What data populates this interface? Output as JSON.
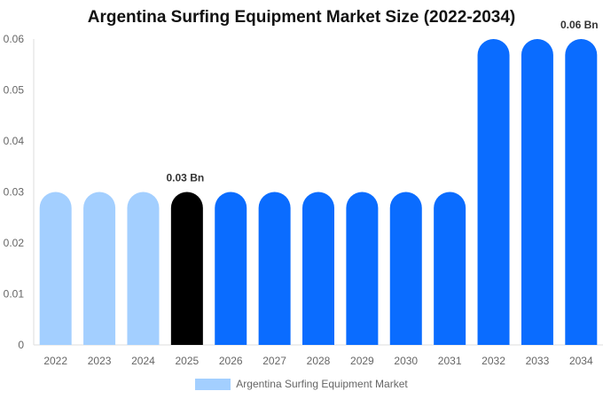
{
  "chart_data": {
    "type": "bar",
    "title": "Argentina Surfing Equipment Market Size (2022-2034)",
    "xlabel": "",
    "ylabel": "",
    "categories": [
      "2022",
      "2023",
      "2024",
      "2025",
      "2026",
      "2027",
      "2028",
      "2029",
      "2030",
      "2031",
      "2032",
      "2033",
      "2034"
    ],
    "series": [
      {
        "name": "Argentina Surfing Equipment Market",
        "values": [
          0.03,
          0.03,
          0.03,
          0.03,
          0.03,
          0.03,
          0.03,
          0.03,
          0.03,
          0.03,
          0.06,
          0.06,
          0.06
        ]
      }
    ],
    "ylim": [
      0,
      0.06
    ],
    "yticks": [
      "0",
      "0.01",
      "0.02",
      "0.03",
      "0.04",
      "0.05",
      "0.06"
    ],
    "bar_colors": [
      "#a3cfff",
      "#a3cfff",
      "#a3cfff",
      "#000000",
      "#0a6cff",
      "#0a6cff",
      "#0a6cff",
      "#0a6cff",
      "#0a6cff",
      "#0a6cff",
      "#0a6cff",
      "#0a6cff",
      "#0a6cff"
    ],
    "data_labels": [
      {
        "category": "2025",
        "text": "0.03 Bn"
      },
      {
        "category": "2034",
        "text": "0.06 Bn"
      }
    ],
    "legend": {
      "label": "Argentina Surfing Equipment Market",
      "color": "#a3cfff",
      "position": "bottom"
    },
    "grid": false
  }
}
